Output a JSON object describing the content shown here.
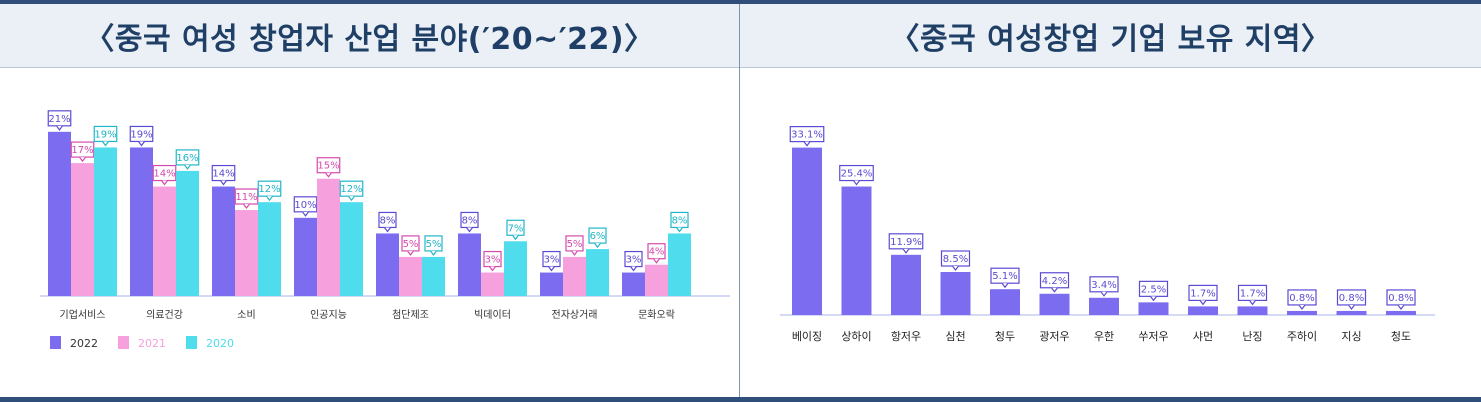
{
  "left_title": "〈중국 여성 창업자 산업 분야(′20~′22)〉",
  "right_title": "〈중국 여성창업 기업 보유 지역〉",
  "chart_data": [
    {
      "type": "bar",
      "categories": [
        "기업서비스",
        "의료건강",
        "소비",
        "인공지능",
        "첨단제조",
        "빅데이터",
        "전자상거래",
        "문화오락"
      ],
      "series": [
        {
          "name": "2022",
          "color": "#7b6cf0",
          "values": [
            21,
            19,
            14,
            10,
            8,
            8,
            3,
            3
          ]
        },
        {
          "name": "2021",
          "color": "#f7a0de",
          "values": [
            17,
            14,
            11,
            15,
            5,
            3,
            5,
            4
          ]
        },
        {
          "name": "2020",
          "color": "#4fdcec",
          "values": [
            19,
            16,
            12,
            12,
            5,
            7,
            6,
            8
          ]
        }
      ],
      "ylim": [
        0,
        22
      ],
      "legend": "bottom-left",
      "value_suffix": "%"
    },
    {
      "type": "bar",
      "categories": [
        "베이징",
        "상하이",
        "항저우",
        "심천",
        "청두",
        "광저우",
        "우한",
        "쑤저우",
        "샤먼",
        "난징",
        "주하이",
        "지싱",
        "청도"
      ],
      "series": [
        {
          "name": "",
          "color": "#7b6cf0",
          "values": [
            33.1,
            25.4,
            11.9,
            8.5,
            5.1,
            4.2,
            3.4,
            2.5,
            1.7,
            1.7,
            0.8,
            0.8,
            0.8
          ]
        }
      ],
      "ylim": [
        0,
        35
      ],
      "value_suffix": "%"
    }
  ]
}
